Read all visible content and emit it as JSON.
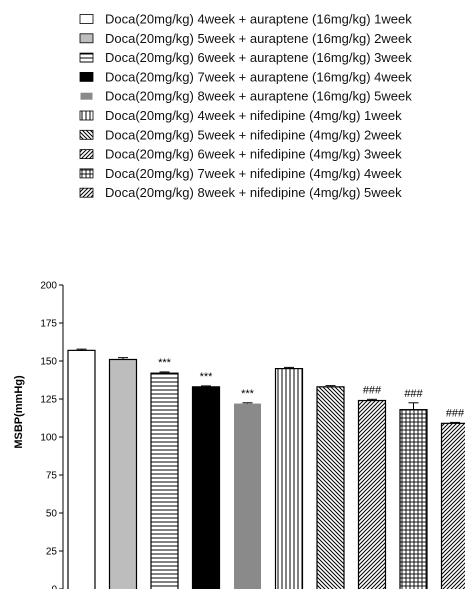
{
  "chart_data": {
    "type": "bar",
    "title": "",
    "xlabel": "",
    "ylabel": "MSBP(mmHg)",
    "ylim": [
      0,
      200
    ],
    "yticks": [
      0,
      25,
      50,
      75,
      100,
      125,
      150,
      175,
      200
    ],
    "grid": false,
    "legend_position": "top",
    "series": [
      {
        "name": "Doca(20mg/kg) 4week + auraptene (16mg/kg) 1week",
        "value": 157,
        "error": 0.8,
        "sig": "",
        "pattern": "white"
      },
      {
        "name": "Doca(20mg/kg) 5week + auraptene (16mg/kg) 2week",
        "value": 151,
        "error": 1.2,
        "sig": "",
        "pattern": "lightgray"
      },
      {
        "name": "Doca(20mg/kg) 6week + auraptene (16mg/kg) 3week",
        "value": 142,
        "error": 0.8,
        "sig": "***",
        "pattern": "hstripes"
      },
      {
        "name": "Doca(20mg/kg) 7week + auraptene (16mg/kg) 4week",
        "value": 133,
        "error": 0.6,
        "sig": "***",
        "pattern": "black"
      },
      {
        "name": "Doca(20mg/kg) 8week + auraptene (16mg/kg) 5week",
        "value": 122,
        "error": 0.5,
        "sig": "***",
        "pattern": "gray"
      },
      {
        "name": "Doca(20mg/kg) 4week + nifedipine (4mg/kg) 1week",
        "value": 145,
        "error": 0.8,
        "sig": "",
        "pattern": "vstripes"
      },
      {
        "name": "Doca(20mg/kg) 5week + nifedipine (4mg/kg) 2week",
        "value": 133,
        "error": 0.8,
        "sig": "",
        "pattern": "diagdown"
      },
      {
        "name": "Doca(20mg/kg) 6week + nifedipine (4mg/kg) 3week",
        "value": 124,
        "error": 0.8,
        "sig": "###",
        "pattern": "diagup"
      },
      {
        "name": "Doca(20mg/kg) 7week + nifedipine (4mg/kg) 4week",
        "value": 118,
        "error": 4.5,
        "sig": "###",
        "pattern": "grid"
      },
      {
        "name": "Doca(20mg/kg) 8week + nifedipine (4mg/kg) 5week",
        "value": 109,
        "error": 0.6,
        "sig": "###",
        "pattern": "diagup"
      }
    ],
    "colors": {
      "black": "#000000",
      "lightgray": "#bdbdbd",
      "gray": "#8a8a8a",
      "white": "#ffffff"
    }
  }
}
